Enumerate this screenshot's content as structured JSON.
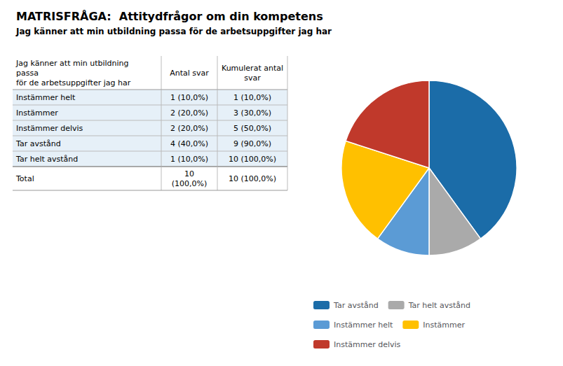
{
  "chart_data": {
    "type": "pie",
    "title": "MATRISFRÅGA:  Attitydfrågor om din kompetens",
    "subtitle": "Jag känner att min utbildning passa för de arbetsuppgifter jag har",
    "categories": [
      "Tar avstånd",
      "Tar helt avstånd",
      "Instämmer helt",
      "Instämmer",
      "Instämmer delvis"
    ],
    "values": [
      40,
      10,
      10,
      20,
      20
    ],
    "colors": [
      "#1B6CA8",
      "#AAAAAA",
      "#5B9BD5",
      "#FFC000",
      "#C0392B"
    ],
    "legend": "bottom",
    "data_labels": false,
    "table": {
      "header": [
        [
          "Jag känner att min utbildning",
          "passa",
          "för de arbetsuppgifter jag har"
        ],
        [
          "Antal svar"
        ],
        [
          "Kumulerat antal",
          "svar"
        ]
      ],
      "rows": [
        [
          [
            "Instämmer helt"
          ],
          [
            "1 (10,0%)"
          ],
          [
            "1 (10,0%)"
          ]
        ],
        [
          [
            "Instämmer"
          ],
          [
            "2 (20,0%)"
          ],
          [
            "3 (30,0%)"
          ]
        ],
        [
          [
            "Instämmer delvis"
          ],
          [
            "2 (20,0%)"
          ],
          [
            "5 (50,0%)"
          ]
        ],
        [
          [
            "Tar avstånd"
          ],
          [
            "4 (40,0%)"
          ],
          [
            "9 (90,0%)"
          ]
        ],
        [
          [
            "Tar helt avstånd"
          ],
          [
            "1 (10,0%)"
          ],
          [
            "10 (100,0%)"
          ]
        ]
      ],
      "total": [
        [
          "Total"
        ],
        [
          "10",
          "(100,0%)"
        ],
        [
          "10 (100,0%)"
        ]
      ]
    }
  }
}
